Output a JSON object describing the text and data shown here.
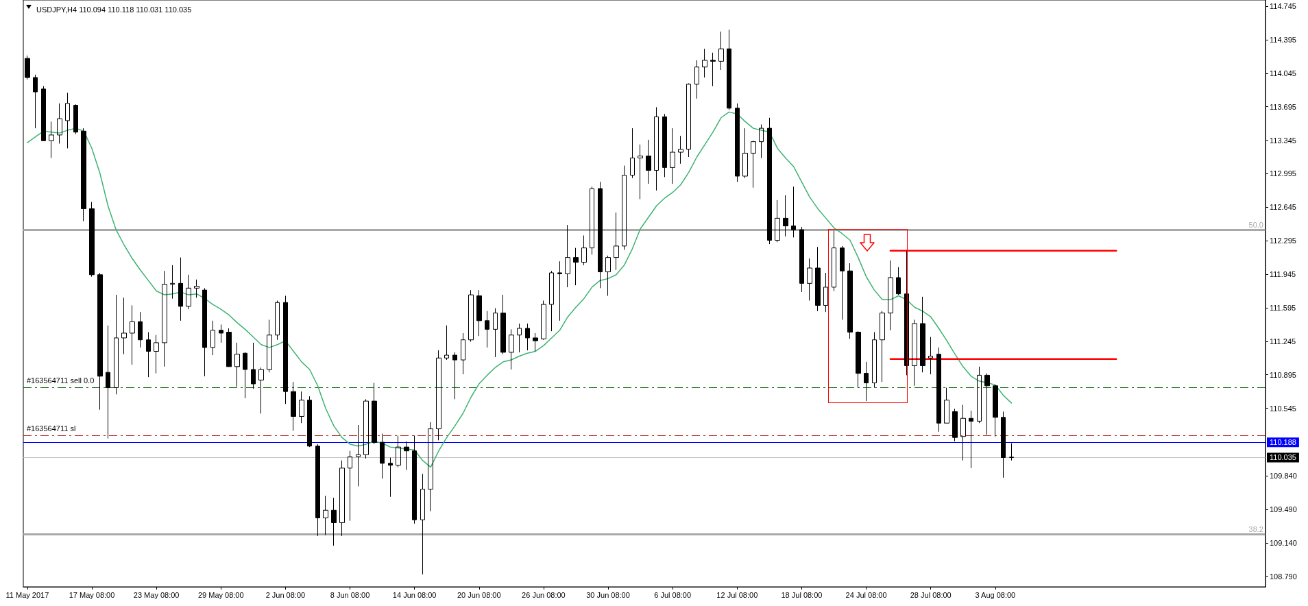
{
  "chart_data": {
    "type": "candlestick",
    "title": "USDJPY,H4 110.094 110.118 110.031 110.035",
    "color": "#000000",
    "marker": "none",
    "categories": [
      "11 May 2017",
      null,
      null,
      null,
      null,
      null,
      null,
      null,
      "17 May 08:00",
      null,
      null,
      null,
      null,
      null,
      null,
      null,
      "23 May 08:00",
      null,
      null,
      null,
      null,
      null,
      null,
      null,
      "29 May 08:00",
      null,
      null,
      null,
      null,
      null,
      null,
      null,
      "2 Jun 08:00",
      null,
      null,
      null,
      null,
      null,
      null,
      null,
      "8 Jun 08:00",
      null,
      null,
      null,
      null,
      null,
      null,
      null,
      "14 Jun 08:00",
      null,
      null,
      null,
      null,
      null,
      null,
      null,
      "20 Jun 08:00",
      null,
      null,
      null,
      null,
      null,
      null,
      null,
      "26 Jun 08:00",
      null,
      null,
      null,
      null,
      null,
      null,
      null,
      "30 Jun 08:00",
      null,
      null,
      null,
      null,
      null,
      null,
      null,
      "6 Jul 08:00",
      null,
      null,
      null,
      null,
      null,
      null,
      null,
      "12 Jul 08:00",
      null,
      null,
      null,
      null,
      null,
      null,
      null,
      "18 Jul 08:00",
      null,
      null,
      null,
      null,
      null,
      null,
      null,
      "24 Jul 08:00",
      null,
      null,
      null,
      null,
      null,
      null,
      null,
      "28 Jul 08:00",
      null,
      null,
      null,
      null,
      null,
      null,
      null,
      "3 Aug 08:00",
      null,
      null,
      null,
      null,
      null,
      null,
      null,
      null,
      null,
      null,
      null,
      null,
      null,
      null,
      null,
      null,
      null,
      null,
      null,
      null,
      null,
      null,
      null,
      null,
      null,
      null,
      null,
      null,
      null,
      null,
      null,
      null,
      null
    ],
    "ylim": [
      108.68,
      114.81
    ],
    "yticks": [
      114.745,
      114.395,
      114.045,
      113.695,
      113.345,
      112.995,
      112.645,
      112.295,
      111.945,
      111.595,
      111.245,
      110.895,
      110.545,
      {
        "value": 109.84,
        "label": "109.840"
      },
      {
        "value": 109.49,
        "label": "109.490"
      },
      {
        "value": 109.14,
        "label": "109.140"
      },
      {
        "value": 108.79,
        "label": "108.790"
      }
    ],
    "ohlc": [
      [
        114.2,
        114.23,
        113.98,
        114.0
      ],
      [
        114.0,
        114.03,
        113.47,
        113.85
      ],
      [
        113.88,
        113.91,
        113.34,
        113.34
      ],
      [
        113.34,
        113.54,
        113.16,
        113.4
      ],
      [
        113.4,
        113.73,
        113.31,
        113.57
      ],
      [
        113.55,
        113.84,
        113.26,
        113.73
      ],
      [
        113.71,
        113.72,
        113.41,
        113.43
      ],
      [
        113.44,
        113.47,
        112.5,
        112.63
      ],
      [
        112.63,
        112.7,
        111.92,
        111.94
      ],
      [
        111.94,
        111.96,
        110.53,
        110.88
      ],
      [
        110.92,
        111.41,
        110.23,
        110.76
      ],
      [
        110.76,
        111.73,
        110.69,
        111.28
      ],
      [
        111.28,
        111.7,
        111.11,
        111.33
      ],
      [
        111.33,
        111.62,
        111.0,
        111.45
      ],
      [
        111.45,
        111.55,
        111.18,
        111.26
      ],
      [
        111.26,
        111.34,
        110.87,
        111.14
      ],
      [
        111.14,
        111.31,
        110.91,
        111.23
      ],
      [
        111.23,
        111.98,
        110.98,
        111.84
      ],
      [
        111.84,
        112.04,
        111.69,
        111.85
      ],
      [
        111.85,
        112.12,
        111.46,
        111.61
      ],
      [
        111.61,
        111.94,
        111.58,
        111.8
      ],
      [
        111.8,
        111.89,
        111.7,
        111.82
      ],
      [
        111.78,
        111.8,
        110.88,
        111.18
      ],
      [
        111.18,
        111.46,
        111.1,
        111.36
      ],
      [
        111.36,
        111.42,
        111.23,
        111.33
      ],
      [
        111.34,
        111.38,
        110.98,
        110.98
      ],
      [
        110.98,
        111.23,
        110.77,
        111.11
      ],
      [
        111.12,
        111.13,
        110.65,
        110.95
      ],
      [
        110.95,
        111.23,
        110.75,
        110.8
      ],
      [
        110.84,
        110.97,
        110.49,
        110.95
      ],
      [
        110.95,
        111.47,
        110.92,
        111.31
      ],
      [
        111.31,
        111.67,
        111.26,
        111.65
      ],
      [
        111.65,
        111.72,
        110.59,
        110.72
      ],
      [
        110.72,
        110.82,
        110.31,
        110.46
      ],
      [
        110.46,
        110.72,
        110.39,
        110.63
      ],
      [
        110.63,
        110.67,
        110.14,
        110.15
      ],
      [
        110.15,
        110.17,
        109.21,
        109.4
      ],
      [
        109.4,
        109.63,
        109.22,
        109.48
      ],
      [
        109.48,
        109.61,
        109.11,
        109.35
      ],
      [
        109.35,
        110.0,
        109.21,
        109.92
      ],
      [
        109.92,
        110.1,
        109.37,
        110.04
      ],
      [
        110.04,
        110.37,
        109.73,
        110.06
      ],
      [
        110.06,
        110.64,
        110.02,
        110.62
      ],
      [
        110.62,
        110.81,
        110.17,
        110.19
      ],
      [
        110.19,
        110.28,
        109.81,
        109.97
      ],
      [
        109.97,
        110.03,
        109.62,
        109.95
      ],
      [
        109.95,
        110.26,
        109.93,
        110.14
      ],
      [
        110.14,
        110.2,
        109.9,
        110.1
      ],
      [
        110.1,
        110.26,
        109.34,
        109.38
      ],
      [
        109.38,
        109.86,
        108.81,
        109.7
      ],
      [
        109.7,
        110.4,
        109.47,
        110.33
      ],
      [
        110.33,
        111.15,
        110.21,
        111.07
      ],
      [
        111.07,
        111.41,
        111.05,
        111.1
      ],
      [
        111.1,
        111.13,
        110.64,
        111.05
      ],
      [
        111.05,
        111.33,
        110.9,
        111.26
      ],
      [
        111.26,
        111.78,
        111.24,
        111.73
      ],
      [
        111.72,
        111.78,
        111.3,
        111.46
      ],
      [
        111.46,
        111.56,
        111.18,
        111.37
      ],
      [
        111.37,
        111.59,
        111.08,
        111.54
      ],
      [
        111.54,
        111.73,
        111.11,
        111.13
      ],
      [
        111.13,
        111.37,
        110.95,
        111.31
      ],
      [
        111.31,
        111.43,
        111.13,
        111.38
      ],
      [
        111.38,
        111.43,
        111.15,
        111.28
      ],
      [
        111.28,
        111.33,
        111.14,
        111.25
      ],
      [
        111.27,
        111.67,
        111.26,
        111.63
      ],
      [
        111.63,
        111.98,
        111.35,
        111.96
      ],
      [
        111.96,
        112.08,
        111.46,
        111.95
      ],
      [
        111.95,
        112.46,
        111.81,
        112.12
      ],
      [
        112.12,
        112.22,
        111.83,
        112.07
      ],
      [
        112.07,
        112.35,
        112.04,
        112.22
      ],
      [
        112.22,
        112.86,
        112.15,
        112.84
      ],
      [
        112.84,
        112.91,
        111.8,
        111.97
      ],
      [
        111.97,
        112.14,
        111.72,
        112.12
      ],
      [
        112.12,
        112.59,
        111.99,
        112.24
      ],
      [
        112.24,
        113.08,
        112.2,
        112.98
      ],
      [
        112.98,
        113.47,
        112.95,
        113.16
      ],
      [
        113.16,
        113.3,
        112.73,
        113.18
      ],
      [
        113.18,
        113.35,
        112.89,
        113.03
      ],
      [
        113.03,
        113.69,
        112.82,
        113.59
      ],
      [
        113.59,
        113.62,
        112.96,
        113.06
      ],
      [
        113.06,
        113.47,
        112.89,
        113.22
      ],
      [
        113.22,
        113.39,
        113.1,
        113.25
      ],
      [
        113.25,
        113.94,
        113.17,
        113.93
      ],
      [
        113.93,
        114.18,
        113.78,
        114.11
      ],
      [
        114.11,
        114.3,
        114.0,
        114.18
      ],
      [
        114.18,
        114.26,
        113.91,
        114.17
      ],
      [
        114.17,
        114.48,
        114.08,
        114.3
      ],
      [
        114.3,
        114.5,
        113.66,
        113.68
      ],
      [
        113.68,
        113.73,
        112.91,
        112.97
      ],
      [
        112.97,
        113.47,
        112.95,
        113.21
      ],
      [
        113.21,
        113.34,
        112.85,
        113.33
      ],
      [
        113.33,
        113.51,
        113.16,
        113.47
      ],
      [
        113.47,
        113.58,
        112.26,
        112.3
      ],
      [
        112.3,
        112.72,
        112.28,
        112.53
      ],
      [
        112.53,
        112.77,
        112.34,
        112.45
      ],
      [
        112.45,
        112.86,
        112.33,
        112.41
      ],
      [
        112.41,
        112.44,
        111.76,
        111.85
      ],
      [
        111.85,
        112.11,
        111.67,
        112.01
      ],
      [
        112.01,
        112.23,
        111.56,
        111.62
      ],
      [
        111.62,
        111.96,
        111.55,
        111.81
      ],
      [
        111.81,
        112.4,
        111.77,
        112.22
      ],
      [
        112.22,
        112.24,
        111.47,
        111.98
      ],
      [
        111.98,
        112.06,
        111.27,
        111.34
      ],
      [
        111.34,
        111.35,
        110.76,
        110.91
      ],
      [
        110.91,
        111.03,
        110.62,
        110.81
      ],
      [
        110.81,
        111.34,
        110.76,
        111.26
      ],
      [
        111.26,
        111.56,
        110.82,
        111.54
      ],
      [
        111.54,
        112.09,
        111.36,
        111.91
      ],
      [
        111.91,
        112.02,
        111.73,
        111.74
      ],
      [
        111.74,
        112.19,
        110.89,
        110.99
      ],
      [
        110.99,
        111.47,
        110.78,
        111.43
      ],
      [
        111.43,
        111.71,
        110.92,
        110.99
      ],
      [
        111.07,
        111.29,
        110.9,
        111.09
      ],
      [
        111.11,
        111.18,
        110.3,
        110.39
      ],
      [
        110.39,
        110.76,
        110.39,
        110.63
      ],
      [
        110.51,
        110.54,
        110.2,
        110.24
      ],
      [
        110.25,
        110.58,
        110.0,
        110.44
      ],
      [
        110.44,
        110.52,
        109.92,
        110.41
      ],
      [
        110.41,
        110.98,
        110.39,
        110.89
      ],
      [
        110.89,
        110.91,
        110.27,
        110.78
      ],
      [
        110.78,
        110.79,
        110.25,
        110.45
      ],
      [
        110.45,
        110.51,
        109.82,
        110.03
      ],
      [
        110.03,
        110.18,
        110.0,
        110.035
      ],
      null,
      null,
      null,
      null,
      null,
      null,
      null,
      null,
      null,
      null,
      null,
      null,
      null,
      null,
      null,
      null,
      null,
      null,
      null,
      null,
      null,
      null,
      null,
      null,
      null,
      null,
      null,
      null,
      null,
      null,
      null
    ],
    "series": [
      {
        "type": "line",
        "color": "#3cb371",
        "values": [
          113.32,
          113.38,
          113.44,
          113.43,
          113.42,
          113.45,
          113.47,
          113.44,
          113.26,
          113.0,
          112.66,
          112.41,
          112.25,
          112.11,
          111.99,
          111.88,
          111.77,
          111.73,
          111.74,
          111.76,
          111.73,
          111.74,
          111.69,
          111.63,
          111.58,
          111.52,
          111.44,
          111.37,
          111.29,
          111.21,
          111.18,
          111.21,
          111.25,
          111.14,
          111.03,
          110.95,
          110.78,
          110.54,
          110.36,
          110.24,
          110.17,
          110.15,
          110.17,
          110.2,
          110.18,
          110.14,
          110.13,
          110.12,
          110.11,
          110.0,
          109.93,
          110.1,
          110.24,
          110.36,
          110.49,
          110.66,
          110.8,
          110.89,
          110.97,
          111.03,
          111.05,
          111.09,
          111.12,
          111.14,
          111.2,
          111.28,
          111.36,
          111.5,
          111.6,
          111.69,
          111.81,
          111.88,
          111.9,
          111.94,
          112.04,
          112.21,
          112.42,
          112.54,
          112.66,
          112.74,
          112.8,
          112.88,
          113.01,
          113.17,
          113.3,
          113.43,
          113.58,
          113.64,
          113.62,
          113.54,
          113.47,
          113.45,
          113.43,
          113.26,
          113.16,
          113.07,
          112.91,
          112.75,
          112.63,
          112.53,
          112.43,
          112.37,
          112.3,
          112.12,
          111.92,
          111.78,
          111.68,
          111.68,
          111.72,
          111.68,
          111.6,
          111.56,
          111.5,
          111.38,
          111.25,
          111.11,
          110.98,
          110.88,
          110.83,
          110.81,
          110.79,
          110.68,
          110.6,
          null,
          null,
          null,
          null,
          null,
          null,
          null,
          null,
          null,
          null,
          null,
          null,
          null,
          null,
          null,
          null,
          null,
          null,
          null,
          null,
          null,
          null,
          null,
          null,
          null,
          null,
          null,
          null,
          null,
          null,
          null
        ]
      },
      {
        "type": "line",
        "color": "#ff0000",
        "values": [
          null,
          null,
          null,
          null,
          null,
          null,
          null,
          null,
          null,
          null,
          null,
          null,
          null,
          null,
          null,
          null,
          null,
          null,
          null,
          null,
          null,
          null,
          null,
          null,
          null,
          null,
          null,
          null,
          null,
          null,
          null,
          null,
          null,
          null,
          null,
          null,
          null,
          null,
          null,
          null,
          null,
          null,
          null,
          null,
          null,
          null,
          null,
          null,
          null,
          null,
          null,
          null,
          null,
          null,
          null,
          null,
          null,
          null,
          null,
          null,
          null,
          null,
          null,
          null,
          null,
          null,
          null,
          null,
          null,
          null,
          null,
          null,
          null,
          null,
          null,
          null,
          null,
          null,
          null,
          null,
          null,
          null,
          null,
          null,
          null,
          null,
          null,
          null,
          null,
          null,
          null,
          null,
          null,
          null,
          null,
          null,
          null,
          null,
          null,
          null,
          null,
          null,
          null,
          null,
          null,
          null,
          null,
          112.19,
          112.19,
          112.19,
          112.19,
          112.19,
          112.19,
          112.19,
          112.19,
          112.19,
          112.19,
          112.19,
          112.19,
          112.19,
          112.19,
          112.19,
          112.19,
          112.19,
          112.19,
          112.19,
          112.19,
          112.19,
          112.19,
          112.19,
          112.19,
          112.19,
          112.19,
          112.19,
          112.19,
          112.19,
          null,
          null,
          null,
          null,
          null,
          null,
          null,
          null,
          null,
          null,
          null,
          null,
          null,
          null,
          null,
          null,
          null,
          null
        ]
      },
      {
        "type": "line",
        "color": "#ff0000",
        "values": [
          null,
          null,
          null,
          null,
          null,
          null,
          null,
          null,
          null,
          null,
          null,
          null,
          null,
          null,
          null,
          null,
          null,
          null,
          null,
          null,
          null,
          null,
          null,
          null,
          null,
          null,
          null,
          null,
          null,
          null,
          null,
          null,
          null,
          null,
          null,
          null,
          null,
          null,
          null,
          null,
          null,
          null,
          null,
          null,
          null,
          null,
          null,
          null,
          null,
          null,
          null,
          null,
          null,
          null,
          null,
          null,
          null,
          null,
          null,
          null,
          null,
          null,
          null,
          null,
          null,
          null,
          null,
          null,
          null,
          null,
          null,
          null,
          null,
          null,
          null,
          null,
          null,
          null,
          null,
          null,
          null,
          null,
          null,
          null,
          null,
          null,
          null,
          null,
          null,
          null,
          null,
          null,
          null,
          null,
          null,
          null,
          null,
          null,
          null,
          null,
          null,
          null,
          null,
          null,
          null,
          null,
          null,
          111.06,
          111.06,
          111.06,
          111.06,
          111.06,
          111.06,
          111.06,
          111.06,
          111.06,
          111.06,
          111.06,
          111.06,
          111.06,
          111.06,
          111.06,
          111.06,
          111.06,
          111.06,
          111.06,
          111.06,
          111.06,
          111.06,
          111.06,
          111.06,
          111.06,
          111.06,
          111.06,
          111.06,
          111.06,
          null,
          null,
          null,
          null,
          null,
          null,
          null,
          null,
          null,
          null,
          null,
          null,
          null,
          null,
          null,
          null,
          null,
          null
        ]
      }
    ],
    "ref_lines": [
      {
        "axis": "y",
        "value": 112.41,
        "color": "#a9a9a9"
      },
      {
        "axis": "y",
        "value": 109.23,
        "color": "#a9a9a9"
      },
      {
        "axis": "y",
        "value": 110.76,
        "label": "#163564711 sell 0.0",
        "color": "#006400",
        "line_style": "dashed"
      },
      {
        "axis": "y",
        "value": 110.26,
        "label": "#163564711 sl",
        "color": "#b22222",
        "line_style": "dashed"
      },
      {
        "axis": "y",
        "value": 110.188,
        "label": "110.188",
        "color": "#0000ff"
      },
      {
        "axis": "y",
        "value": 110.035,
        "label": "110.035",
        "color": "#c0c0c0"
      }
    ],
    "annotations": [
      {
        "text": "50.0",
        "y": 112.41
      },
      {
        "text": "38.2",
        "y": 109.23
      }
    ]
  }
}
